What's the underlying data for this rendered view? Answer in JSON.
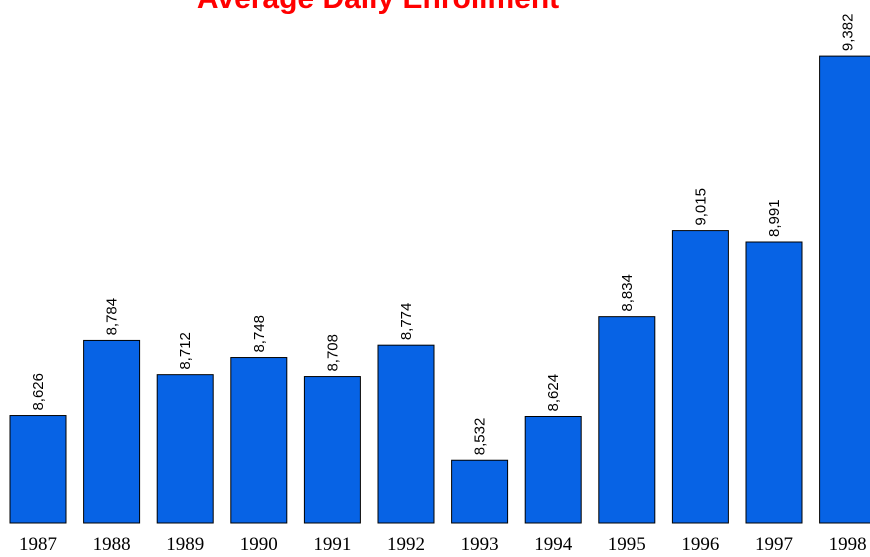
{
  "chart_data": {
    "type": "bar",
    "title": "Average Daily Enrollment",
    "categories": [
      "1987",
      "1988",
      "1989",
      "1990",
      "1991",
      "1992",
      "1993",
      "1994",
      "1995",
      "1996",
      "1997",
      "1998"
    ],
    "values": [
      8626,
      8784,
      8712,
      8748,
      8708,
      8774,
      8532,
      8624,
      8834,
      9015,
      8991,
      9382
    ],
    "value_labels": [
      "8,626",
      "8,784",
      "8,712",
      "8,748",
      "8,708",
      "8,774",
      "8,532",
      "8,624",
      "8,834",
      "9,015",
      "8,991",
      "9,382"
    ],
    "color": "#0763e5",
    "ylim": [
      8400,
      9500
    ]
  }
}
